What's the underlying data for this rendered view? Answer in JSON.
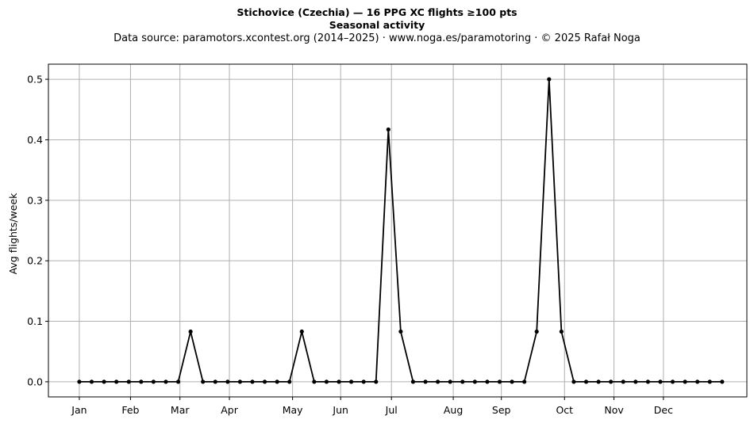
{
  "chart_data": {
    "type": "line",
    "title": "Stichovice (Czechia)  —  16 PPG XC flights ≥100 pts",
    "subtitle": "Seasonal activity",
    "source_line": "Data source: paramotors.xcontest.org (2014–2025)  ·  www.noga.es/paramotoring  ·  © 2025 Rafał Noga",
    "xlabel": "",
    "ylabel": "Avg flights/week",
    "xlim": [
      -2.5,
      54
    ],
    "ylim": [
      -0.025,
      0.525
    ],
    "grid": true,
    "y_ticks": [
      0.0,
      0.1,
      0.2,
      0.3,
      0.4,
      0.5
    ],
    "y_tick_labels": [
      "0.0",
      "0.1",
      "0.2",
      "0.3",
      "0.4",
      "0.5"
    ],
    "month_ticks": [
      {
        "label": "Jan",
        "week": 0
      },
      {
        "label": "Feb",
        "week": 4.14
      },
      {
        "label": "Mar",
        "week": 8.14
      },
      {
        "label": "Apr",
        "week": 12.14
      },
      {
        "label": "May",
        "week": 17.25
      },
      {
        "label": "Jun",
        "week": 21.14
      },
      {
        "label": "Jul",
        "week": 25.25
      },
      {
        "label": "Aug",
        "week": 30.25
      },
      {
        "label": "Sep",
        "week": 34.14
      },
      {
        "label": "Oct",
        "week": 39.25
      },
      {
        "label": "Nov",
        "week": 43.25
      },
      {
        "label": "Dec",
        "week": 47.25
      }
    ],
    "series": [
      {
        "values": [
          0,
          0,
          0,
          0,
          0,
          0,
          0,
          0,
          0,
          0.083,
          0,
          0,
          0,
          0,
          0,
          0,
          0,
          0,
          0.083,
          0,
          0,
          0,
          0,
          0,
          0,
          0.417,
          0.083,
          0,
          0,
          0,
          0,
          0,
          0,
          0,
          0,
          0,
          0,
          0.083,
          0.5,
          0.083,
          0,
          0,
          0,
          0,
          0,
          0,
          0,
          0,
          0,
          0,
          0,
          0,
          0
        ]
      }
    ],
    "colors": {
      "line": "#000000",
      "grid": "#b0b0b0",
      "axes": "#000000"
    }
  }
}
